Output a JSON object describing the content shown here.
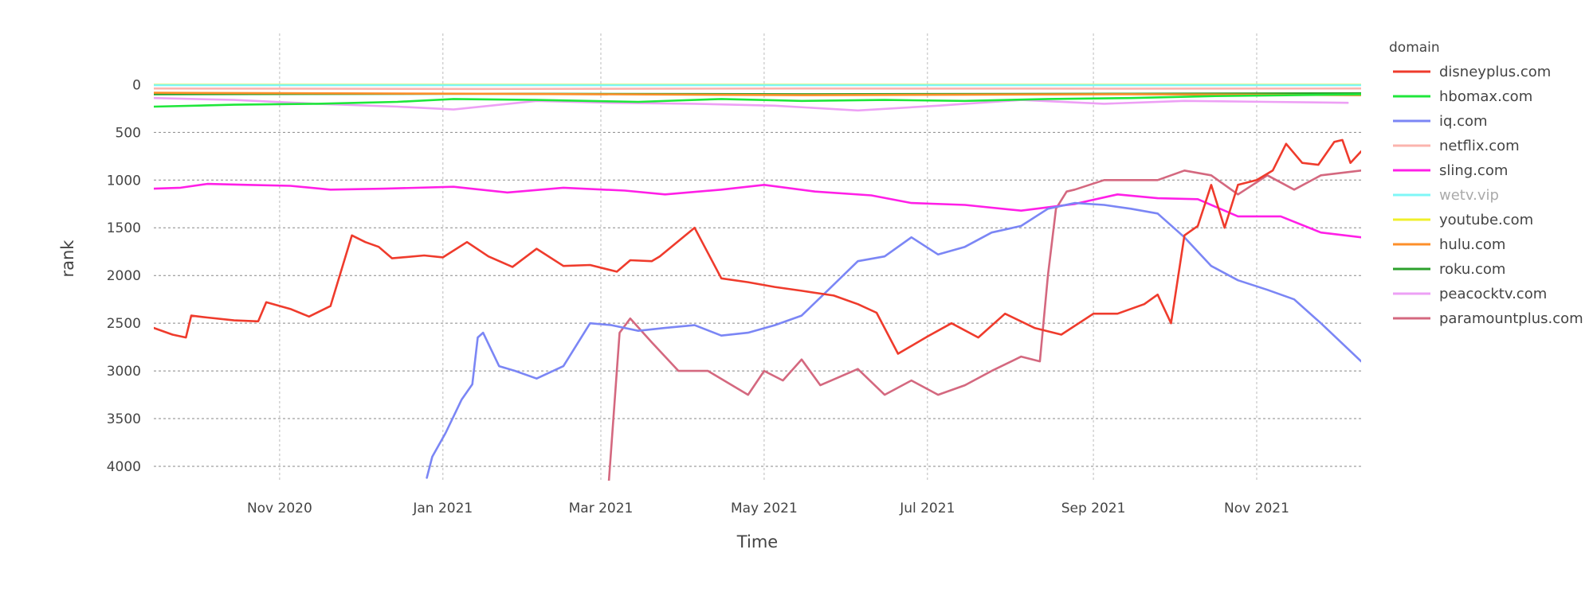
{
  "chart_data": {
    "type": "line",
    "xlabel": "Time",
    "ylabel": "rank",
    "x_start": "2020-09-15",
    "x_end": "2021-12-10",
    "xlim": [
      "2020-09-15",
      "2021-12-10"
    ],
    "ylim": [
      4150,
      -120
    ],
    "y_reversed": true,
    "x_tick_labels": [
      "Nov 2020",
      "Jan 2021",
      "Mar 2021",
      "May 2021",
      "Jul 2021",
      "Sep 2021",
      "Nov 2021"
    ],
    "x_tick_dates": [
      "2020-11-01",
      "2021-01-01",
      "2021-03-01",
      "2021-05-01",
      "2021-07-01",
      "2021-09-01",
      "2021-11-01"
    ],
    "y_ticks": [
      0,
      500,
      1000,
      1500,
      2000,
      2500,
      3000,
      3500,
      4000
    ],
    "y_tick_labels": [
      "0",
      "500",
      "1000",
      "1500",
      "2000",
      "2500",
      "3000",
      "3500",
      "4000"
    ],
    "grid": true,
    "legend_title": "domain",
    "legend_position": "right",
    "series": [
      {
        "name": "disneyplus.com",
        "color": "#ef3b2c",
        "x": [
          "2020-09-15",
          "2020-09-22",
          "2020-09-27",
          "2020-09-29",
          "2020-10-05",
          "2020-10-15",
          "2020-10-24",
          "2020-10-27",
          "2020-11-05",
          "2020-11-12",
          "2020-11-20",
          "2020-11-28",
          "2020-12-03",
          "2020-12-08",
          "2020-12-13",
          "2020-12-25",
          "2021-01-01",
          "2021-01-10",
          "2021-01-18",
          "2021-01-27",
          "2021-02-05",
          "2021-02-15",
          "2021-02-25",
          "2021-03-07",
          "2021-03-12",
          "2021-03-20",
          "2021-03-23",
          "2021-04-05",
          "2021-04-15",
          "2021-04-25",
          "2021-05-05",
          "2021-05-15",
          "2021-05-27",
          "2021-06-05",
          "2021-06-12",
          "2021-06-20",
          "2021-07-01",
          "2021-07-10",
          "2021-07-20",
          "2021-07-30",
          "2021-08-10",
          "2021-08-20",
          "2021-09-01",
          "2021-09-10",
          "2021-09-20",
          "2021-09-25",
          "2021-09-30",
          "2021-10-05",
          "2021-10-10",
          "2021-10-15",
          "2021-10-20",
          "2021-10-25",
          "2021-11-01",
          "2021-11-07",
          "2021-11-12",
          "2021-11-18",
          "2021-11-24",
          "2021-11-30",
          "2021-12-03",
          "2021-12-06",
          "2021-12-10"
        ],
        "y": [
          2550,
          2620,
          2650,
          2420,
          2440,
          2470,
          2480,
          2280,
          2350,
          2430,
          2320,
          1580,
          1650,
          1700,
          1820,
          1790,
          1810,
          1650,
          1800,
          1910,
          1720,
          1900,
          1890,
          1960,
          1840,
          1850,
          1800,
          1500,
          2030,
          2070,
          2120,
          2160,
          2210,
          2300,
          2390,
          2820,
          2640,
          2500,
          2650,
          2400,
          2550,
          2620,
          2400,
          2400,
          2300,
          2200,
          2500,
          1580,
          1480,
          1050,
          1500,
          1050,
          1000,
          900,
          620,
          820,
          840,
          600,
          580,
          820,
          700
        ]
      },
      {
        "name": "hbomax.com",
        "color": "#1fe73b",
        "x": [
          "2020-09-15",
          "2020-10-15",
          "2020-11-15",
          "2020-12-15",
          "2021-01-05",
          "2021-02-05",
          "2021-03-15",
          "2021-04-15",
          "2021-05-15",
          "2021-06-15",
          "2021-07-15",
          "2021-08-15",
          "2021-09-15",
          "2021-10-15",
          "2021-11-15",
          "2021-12-10"
        ],
        "y": [
          230,
          210,
          200,
          180,
          150,
          160,
          180,
          150,
          170,
          160,
          170,
          150,
          140,
          120,
          110,
          100
        ]
      },
      {
        "name": "iq.com",
        "color": "#7b86f5",
        "x": [
          "2020-12-26",
          "2020-12-28",
          "2021-01-02",
          "2021-01-08",
          "2021-01-12",
          "2021-01-14",
          "2021-01-16",
          "2021-01-22",
          "2021-01-28",
          "2021-02-05",
          "2021-02-15",
          "2021-02-25",
          "2021-03-05",
          "2021-03-15",
          "2021-03-25",
          "2021-04-05",
          "2021-04-15",
          "2021-04-25",
          "2021-05-05",
          "2021-05-15",
          "2021-05-25",
          "2021-06-05",
          "2021-06-15",
          "2021-06-25",
          "2021-07-05",
          "2021-07-15",
          "2021-07-25",
          "2021-08-05",
          "2021-08-15",
          "2021-08-25",
          "2021-09-05",
          "2021-09-15",
          "2021-09-25",
          "2021-10-05",
          "2021-10-15",
          "2021-10-25",
          "2021-11-05",
          "2021-11-15",
          "2021-11-25",
          "2021-12-10"
        ],
        "y": [
          4120,
          3900,
          3650,
          3300,
          3140,
          2650,
          2600,
          2950,
          3000,
          3080,
          2950,
          2500,
          2520,
          2580,
          2550,
          2520,
          2630,
          2600,
          2520,
          2420,
          2150,
          1850,
          1800,
          1600,
          1780,
          1700,
          1550,
          1480,
          1300,
          1240,
          1260,
          1300,
          1350,
          1600,
          1900,
          2050,
          2150,
          2250,
          2500,
          2900
        ]
      },
      {
        "name": "netflix.com",
        "color": "#fbb4ae",
        "x": [
          "2020-09-15",
          "2021-01-15",
          "2021-05-15",
          "2021-09-15",
          "2021-12-10"
        ],
        "y": [
          40,
          45,
          40,
          42,
          40
        ]
      },
      {
        "name": "sling.com",
        "color": "#ff1fe7",
        "x": [
          "2020-09-15",
          "2020-09-25",
          "2020-10-05",
          "2020-10-20",
          "2020-11-05",
          "2020-11-20",
          "2020-12-10",
          "2021-01-05",
          "2021-01-25",
          "2021-02-15",
          "2021-03-10",
          "2021-03-25",
          "2021-04-15",
          "2021-05-01",
          "2021-05-20",
          "2021-06-10",
          "2021-06-25",
          "2021-07-15",
          "2021-08-05",
          "2021-08-25",
          "2021-09-10",
          "2021-09-25",
          "2021-10-10",
          "2021-10-25",
          "2021-11-10",
          "2021-11-25",
          "2021-12-10"
        ],
        "y": [
          1090,
          1080,
          1040,
          1050,
          1060,
          1100,
          1090,
          1070,
          1130,
          1080,
          1110,
          1150,
          1100,
          1050,
          1120,
          1160,
          1240,
          1260,
          1320,
          1250,
          1150,
          1190,
          1200,
          1380,
          1380,
          1550,
          1600
        ]
      },
      {
        "name": "wetv.vip",
        "color": "#7ff7f7",
        "dimmed": true,
        "x": [
          "2020-09-15",
          "2021-12-10"
        ],
        "y": [
          5,
          5
        ]
      },
      {
        "name": "youtube.com",
        "color": "#f0f02a",
        "x": [
          "2020-09-15",
          "2021-12-10"
        ],
        "y": [
          2,
          2
        ]
      },
      {
        "name": "hulu.com",
        "color": "#fd8f2a",
        "x": [
          "2020-09-15",
          "2021-01-15",
          "2021-05-15",
          "2021-09-15",
          "2021-12-10"
        ],
        "y": [
          85,
          95,
          110,
          100,
          110
        ]
      },
      {
        "name": "roku.com",
        "color": "#2ca02c",
        "x": [
          "2020-09-15",
          "2021-01-15",
          "2021-05-15",
          "2021-09-15",
          "2021-12-10"
        ],
        "y": [
          100,
          95,
          100,
          95,
          90
        ]
      },
      {
        "name": "peacocktv.com",
        "color": "#eda0f5",
        "x": [
          "2020-09-15",
          "2020-10-15",
          "2020-11-15",
          "2020-12-15",
          "2021-01-05",
          "2021-02-05",
          "2021-03-05",
          "2021-04-05",
          "2021-05-05",
          "2021-06-05",
          "2021-07-05",
          "2021-08-05",
          "2021-09-05",
          "2021-10-05",
          "2021-11-05",
          "2021-12-05"
        ],
        "y": [
          140,
          160,
          200,
          230,
          260,
          170,
          190,
          200,
          220,
          270,
          220,
          160,
          200,
          170,
          180,
          190
        ]
      },
      {
        "name": "paramountplus.com",
        "color": "#d4687f",
        "x": [
          "2021-03-04",
          "2021-03-08",
          "2021-03-12",
          "2021-03-20",
          "2021-03-30",
          "2021-04-10",
          "2021-04-25",
          "2021-05-01",
          "2021-05-08",
          "2021-05-15",
          "2021-05-22",
          "2021-06-05",
          "2021-06-15",
          "2021-06-25",
          "2021-07-05",
          "2021-07-15",
          "2021-07-25",
          "2021-08-05",
          "2021-08-12",
          "2021-08-15",
          "2021-08-18",
          "2021-08-22",
          "2021-08-25",
          "2021-09-05",
          "2021-09-15",
          "2021-09-25",
          "2021-10-05",
          "2021-10-15",
          "2021-10-25",
          "2021-11-05",
          "2021-11-15",
          "2021-11-25",
          "2021-12-10"
        ],
        "y": [
          4150,
          2600,
          2450,
          2700,
          3000,
          3000,
          3250,
          3000,
          3100,
          2880,
          3150,
          2980,
          3250,
          3100,
          3250,
          3150,
          3000,
          2850,
          2900,
          2000,
          1300,
          1120,
          1100,
          1000,
          1000,
          1000,
          900,
          950,
          1150,
          950,
          1100,
          950,
          900
        ]
      }
    ]
  }
}
